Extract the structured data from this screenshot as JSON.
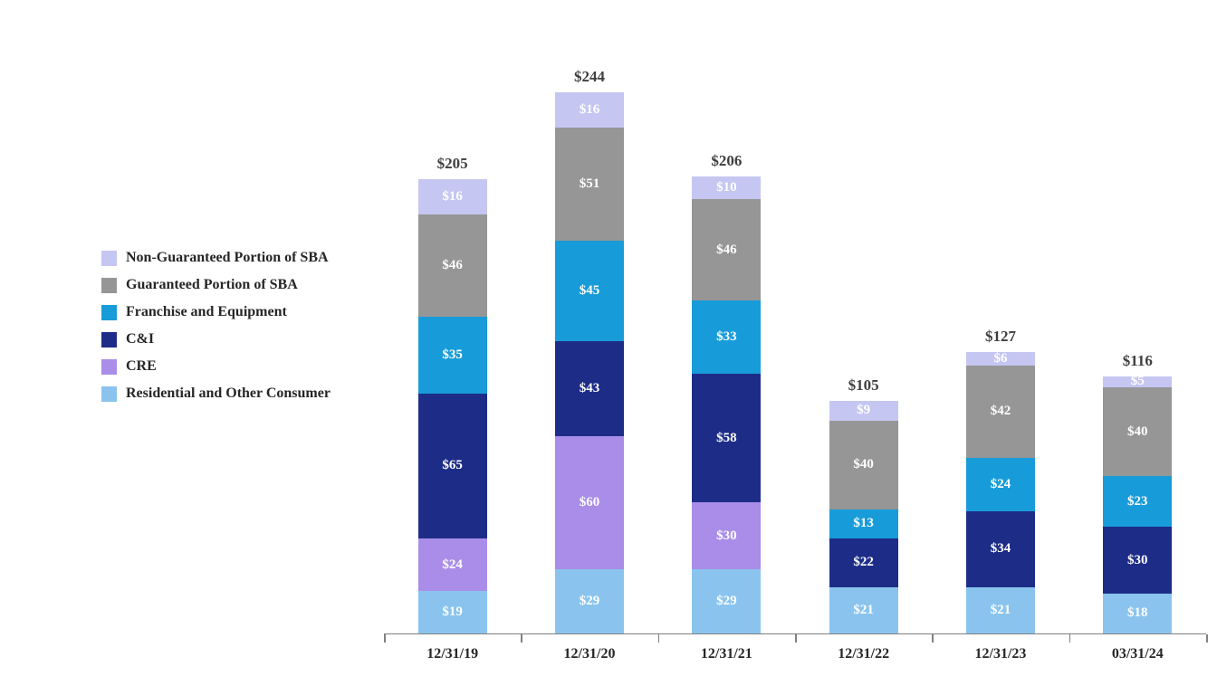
{
  "chart_data": {
    "type": "bar",
    "stacked": true,
    "title": "",
    "xlabel": "",
    "ylabel": "",
    "grid": false,
    "legend_position": "left",
    "value_prefix": "$",
    "categories": [
      "12/31/19",
      "12/31/20",
      "12/31/21",
      "12/31/22",
      "12/31/23",
      "03/31/24"
    ],
    "series": [
      {
        "name": "Residential and Other Consumer",
        "color": "#8ac4ee",
        "values": [
          19,
          29,
          29,
          21,
          21,
          18
        ]
      },
      {
        "name": "CRE",
        "color": "#a98de8",
        "values": [
          24,
          60,
          30,
          null,
          null,
          null
        ]
      },
      {
        "name": "C&I",
        "color": "#1d2d87",
        "values": [
          65,
          43,
          58,
          22,
          34,
          30
        ]
      },
      {
        "name": "Franchise and Equipment",
        "color": "#189cd9",
        "values": [
          35,
          45,
          33,
          13,
          24,
          23
        ]
      },
      {
        "name": "Guaranteed Portion of SBA",
        "color": "#969696",
        "values": [
          46,
          51,
          46,
          40,
          42,
          40
        ]
      },
      {
        "name": "Non-Guaranteed Portion of SBA",
        "color": "#c5c6f2",
        "values": [
          16,
          16,
          10,
          9,
          6,
          5
        ]
      }
    ],
    "totals": [
      205,
      244,
      206,
      105,
      127,
      116
    ],
    "ylim": [
      0,
      260
    ]
  },
  "colors": {
    "total_label": "#3f3f3f",
    "segment_label": "#ffffff",
    "axis": "#808080",
    "background": "#ffffff"
  }
}
